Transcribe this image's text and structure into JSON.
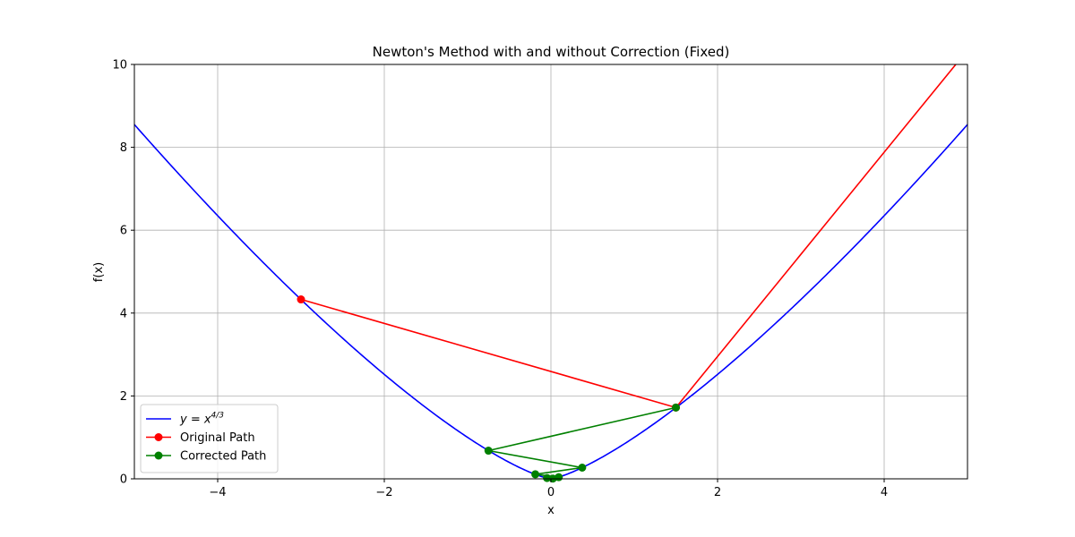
{
  "chart_data": {
    "type": "line",
    "title": "Newton's Method with and without Correction (Fixed)",
    "xlabel": "x",
    "ylabel": "f(x)",
    "xlim": [
      -5,
      5
    ],
    "ylim": [
      0,
      10
    ],
    "xticks": [
      -4,
      -2,
      0,
      2,
      4
    ],
    "xtick_labels": [
      "−4",
      "−2",
      "0",
      "2",
      "4"
    ],
    "yticks": [
      0,
      2,
      4,
      6,
      8,
      10
    ],
    "ytick_labels": [
      "0",
      "2",
      "4",
      "6",
      "8",
      "10"
    ],
    "grid": true,
    "legend_position": "lower-left",
    "series": [
      {
        "name": "y = x^4/3",
        "legend_base": "y = x",
        "legend_sup": "4/3",
        "kind": "curve",
        "function": "|x|^(4/3)",
        "color": "#0000ff",
        "marker": "none"
      },
      {
        "name": "Original Path",
        "kind": "path",
        "color": "#ff0000",
        "marker": "circle",
        "x": [
          -3.0,
          1.5,
          4.9
        ],
        "y": [
          4.33,
          1.72,
          10.1
        ]
      },
      {
        "name": "Corrected Path",
        "kind": "path",
        "color": "#008000",
        "marker": "circle",
        "x": [
          1.5,
          -0.75,
          0.375,
          -0.1875,
          0.09375,
          -0.046875,
          0.0234
        ],
        "y": [
          1.72,
          0.68,
          0.27,
          0.11,
          0.04,
          0.02,
          0.006
        ]
      }
    ]
  }
}
